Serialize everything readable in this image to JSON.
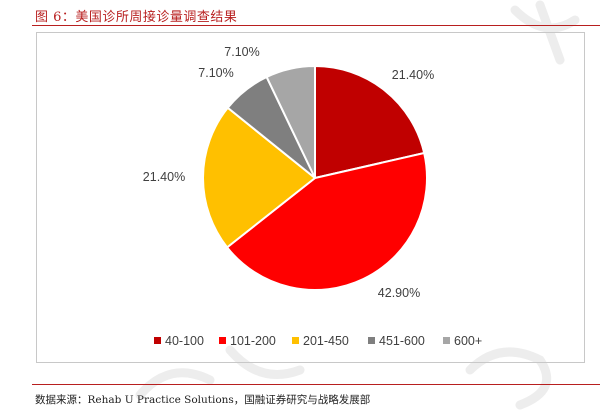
{
  "figure": {
    "title": "图 6：美国诊所周接诊量调查结果",
    "source": "数据来源：Rehab U Practice Solutions，国融证券研究与战略发展部"
  },
  "chart_data": {
    "type": "pie",
    "title": "",
    "start_angle_deg": 0,
    "direction": "clockwise",
    "label_format": "percent_2dp",
    "legend_position": "bottom",
    "slices": [
      {
        "label": "40-100",
        "value": 21.4,
        "display": "21.40%",
        "color": "#c00000"
      },
      {
        "label": "101-200",
        "value": 42.9,
        "display": "42.90%",
        "color": "#ff0000"
      },
      {
        "label": "201-450",
        "value": 21.4,
        "display": "21.40%",
        "color": "#ffc000"
      },
      {
        "label": "451-600",
        "value": 7.1,
        "display": "7.10%",
        "color": "#7f7f7f"
      },
      {
        "label": "600+",
        "value": 7.1,
        "display": "7.10%",
        "color": "#a6a6a6"
      }
    ]
  }
}
